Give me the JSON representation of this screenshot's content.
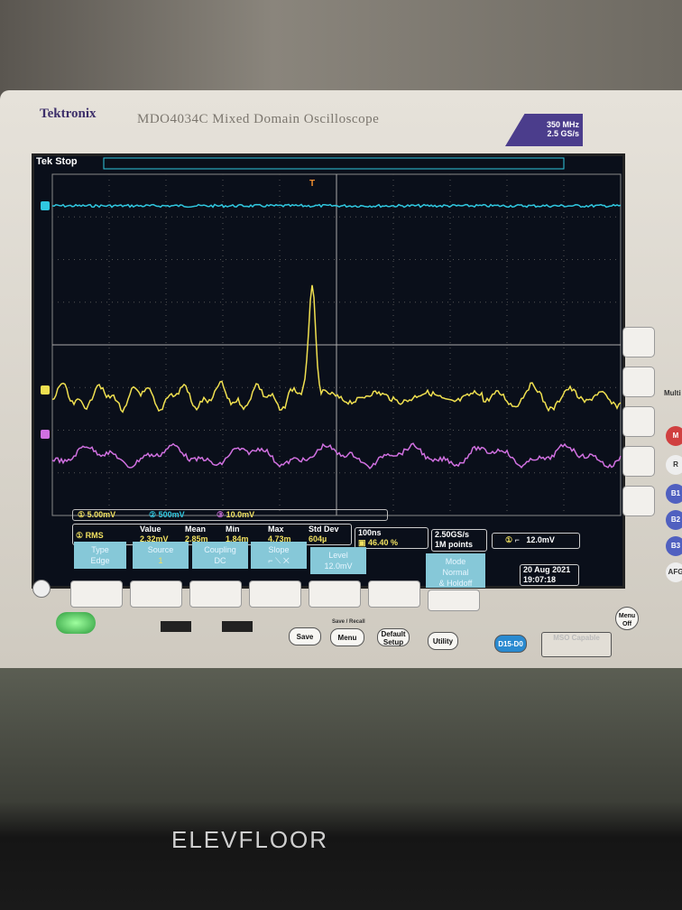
{
  "device": {
    "brand": "Tektronix",
    "model": "MDO4034C Mixed Domain Oscilloscope",
    "spec_line1": "350 MHz",
    "spec_line2": "2.5 GS/s"
  },
  "status": "Tek Stop",
  "trigger_marker": "T",
  "channels": [
    {
      "num": "1",
      "scale": "5.00mV",
      "color": "#f0e050"
    },
    {
      "num": "2",
      "scale": "500mV",
      "color": "#30c8e0"
    },
    {
      "num": "3",
      "scale": "10.0mV",
      "color": "#d070e0"
    }
  ],
  "measurement": {
    "channel": "1",
    "type": "RMS",
    "headers": [
      "Value",
      "Mean",
      "Min",
      "Max",
      "Std Dev"
    ],
    "values": [
      "2.32mV",
      "2.85m",
      "1.84m",
      "4.73m",
      "604µ"
    ]
  },
  "timebase": {
    "scale": "100ns",
    "position": "46.40 %"
  },
  "acquisition": {
    "rate": "2.50GS/s",
    "length": "1M points"
  },
  "trigger": {
    "channel": "1",
    "level": "12.0mV"
  },
  "menu": [
    {
      "label": "Type",
      "value": "Edge"
    },
    {
      "label": "Source",
      "value": "1"
    },
    {
      "label": "Coupling",
      "value": "DC"
    },
    {
      "label": "Slope",
      "value": ""
    },
    {
      "label": "Level",
      "value": "12.0mV"
    },
    {
      "label": "Mode",
      "value": "Normal",
      "extra": "& Holdoff"
    }
  ],
  "datetime": {
    "date": "20 Aug 2021",
    "time": "19:07:18"
  },
  "buttons": {
    "save": "Save",
    "save_recall": "Save / Recall",
    "menu": "Menu",
    "default_setup": "Default Setup",
    "utility": "Utility",
    "digital": "D15-D0",
    "msd": "MSO Capable",
    "menu_off": "Menu Off"
  },
  "side_buttons": [
    "M",
    "R",
    "B1",
    "B2",
    "B3",
    "AFG"
  ],
  "side_label": "Multi",
  "shelf_label": "ELEVFLOOR"
}
